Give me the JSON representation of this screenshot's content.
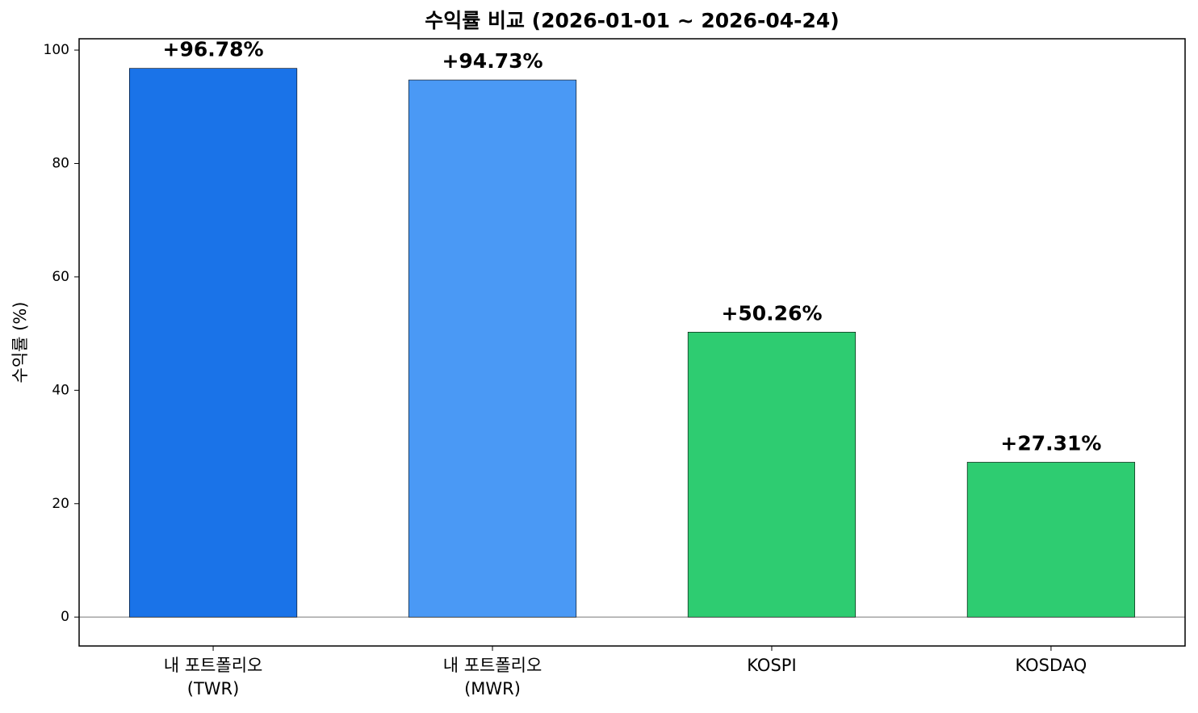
{
  "chart_data": {
    "type": "bar",
    "title": "수익률 비교 (2026-01-01 ~ 2026-04-24)",
    "y_label": "수익률 (%)",
    "categories": [
      "내 포트폴리오\n(TWR)",
      "내 포트폴리오\n(MWR)",
      "KOSPI",
      "KOSDAQ"
    ],
    "values": [
      96.78,
      94.73,
      50.26,
      27.31
    ],
    "value_labels": [
      "+96.78%",
      "+94.73%",
      "+50.26%",
      "+27.31%"
    ],
    "colors": [
      "#1a73e8",
      "#4a99f5",
      "#2ecc71",
      "#2ecc71"
    ],
    "ylim": [
      -5.1,
      102
    ],
    "yticks": [
      0,
      20,
      40,
      60,
      80,
      100
    ],
    "grid": false
  }
}
